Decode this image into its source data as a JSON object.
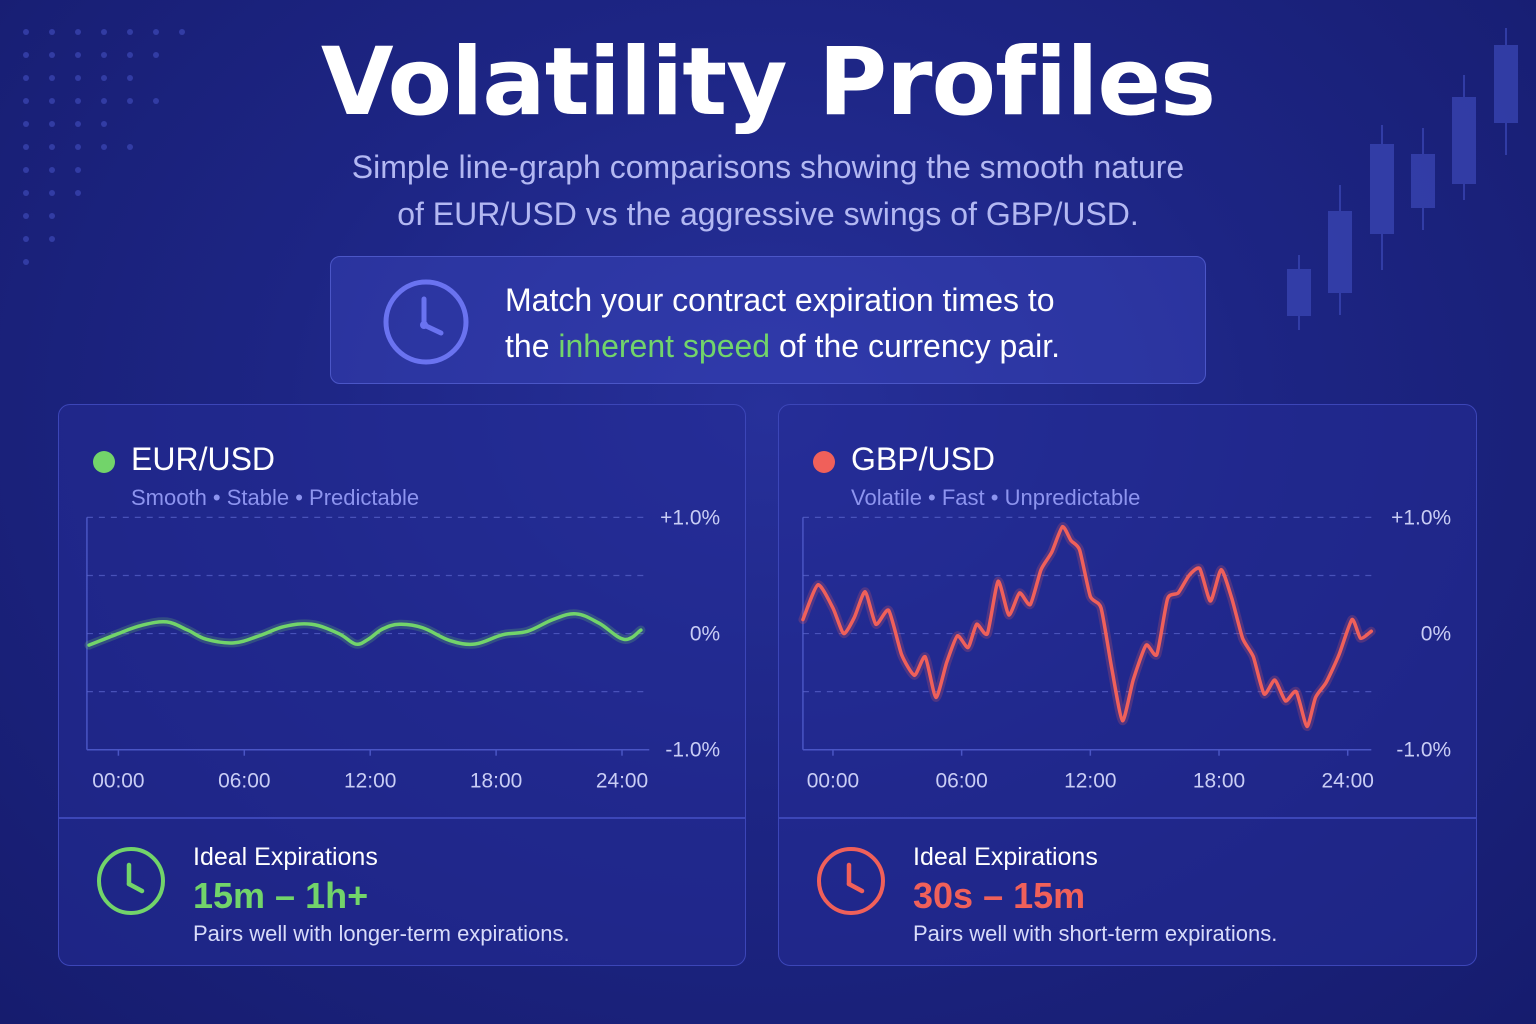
{
  "header": {
    "title": "Volatility Profiles",
    "subtitle_line1": "Simple line-graph comparisons showing the smooth nature",
    "subtitle_line2": "of EUR/USD vs the aggressive swings of GBP/USD."
  },
  "callout": {
    "icon": "clock-icon",
    "text_before": "Match your contract expiration times to",
    "text_mid": "the ",
    "highlight": "inherent speed",
    "text_after": " of the currency pair."
  },
  "colors": {
    "background": "#1d2584",
    "eur": "#72d46a",
    "gbp": "#f0605a",
    "accent": "#6a73f0"
  },
  "cards": [
    {
      "pair": "EUR/USD",
      "traits": "Smooth • Stable • Predictable",
      "footer_label": "Ideal Expirations",
      "footer_range": "15m – 1h+",
      "footer_note": "Pairs well with longer-term expirations."
    },
    {
      "pair": "GBP/USD",
      "traits": "Volatile • Fast • Unpredictable",
      "footer_label": "Ideal Expirations",
      "footer_range": "30s – 15m",
      "footer_note": "Pairs well with short-term expirations."
    }
  ],
  "chart_data": [
    {
      "type": "line",
      "title": "EUR/USD",
      "x_ticks": [
        "00:00",
        "06:00",
        "12:00",
        "18:00",
        "24:00"
      ],
      "y_ticks": [
        "+1.0%",
        "0%",
        "-1.0%"
      ],
      "xlim": [
        -1.5,
        25.3
      ],
      "ylim": [
        -1.0,
        1.0
      ],
      "grid": "dashed horizontal",
      "series": [
        {
          "color": "#72d46a",
          "x": [
            -1.4,
            0,
            1.1,
            2.3,
            3.3,
            4.2,
            5.5,
            6.7,
            7.9,
            9.2,
            10.5,
            11.3,
            11.9,
            12.6,
            13.4,
            14.5,
            15.8,
            17.0,
            18.3,
            19.5,
            20.7,
            21.8,
            22.9,
            24.1,
            24.9
          ],
          "y": [
            -0.1,
            0.0,
            0.07,
            0.1,
            0.03,
            -0.05,
            -0.08,
            -0.02,
            0.06,
            0.08,
            0.0,
            -0.09,
            -0.05,
            0.04,
            0.08,
            0.05,
            -0.06,
            -0.09,
            -0.01,
            0.02,
            0.12,
            0.17,
            0.09,
            -0.05,
            0.03
          ]
        }
      ]
    },
    {
      "type": "line",
      "title": "GBP/USD",
      "x_ticks": [
        "00:00",
        "06:00",
        "12:00",
        "18:00",
        "24:00"
      ],
      "y_ticks": [
        "+1.0%",
        "0%",
        "-1.0%"
      ],
      "xlim": [
        -1.4,
        25.1
      ],
      "ylim": [
        -1.0,
        1.0
      ],
      "grid": "dashed horizontal",
      "series": [
        {
          "color": "#f0605a",
          "x": [
            -1.4,
            -0.7,
            0,
            0.5,
            1.0,
            1.5,
            2.0,
            2.6,
            3.2,
            3.8,
            4.3,
            4.8,
            5.3,
            5.8,
            6.3,
            6.7,
            7.2,
            7.7,
            8.2,
            8.7,
            9.2,
            9.7,
            10.2,
            10.7,
            11.1,
            11.5,
            12.0,
            12.5,
            13.0,
            13.5,
            14.0,
            14.6,
            15.1,
            15.6,
            16.1,
            16.6,
            17.1,
            17.6,
            18.1,
            18.6,
            19.1,
            19.6,
            20.1,
            20.6,
            21.1,
            21.6,
            22.1,
            22.5,
            23.0,
            23.6,
            24.2,
            24.6,
            25.1
          ],
          "y": [
            0.12,
            0.42,
            0.22,
            0.0,
            0.14,
            0.36,
            0.08,
            0.2,
            -0.18,
            -0.36,
            -0.2,
            -0.55,
            -0.25,
            -0.02,
            -0.12,
            0.08,
            0.0,
            0.45,
            0.16,
            0.35,
            0.25,
            0.55,
            0.7,
            0.92,
            0.8,
            0.72,
            0.32,
            0.22,
            -0.3,
            -0.75,
            -0.4,
            -0.1,
            -0.18,
            0.3,
            0.35,
            0.5,
            0.56,
            0.28,
            0.55,
            0.3,
            -0.04,
            -0.2,
            -0.52,
            -0.4,
            -0.58,
            -0.5,
            -0.8,
            -0.55,
            -0.42,
            -0.18,
            0.12,
            -0.04,
            0.02
          ]
        }
      ]
    }
  ]
}
